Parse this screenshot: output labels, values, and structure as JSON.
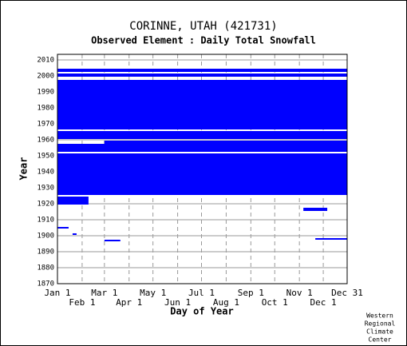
{
  "chart_data": {
    "type": "timeline",
    "title": "CORINNE, UTAH   (421731)",
    "subtitle": "Observed Element : Daily Total Snowfall",
    "xlabel": "Day of Year",
    "ylabel": "Year",
    "note": [
      "Western",
      "Regional",
      "Climate",
      "Center"
    ],
    "color": "#0000ff",
    "xlim": [
      1,
      365
    ],
    "xticks": [
      {
        "value": 1,
        "label": "Jan 1"
      },
      {
        "value": 32,
        "label": "Feb 1"
      },
      {
        "value": 60,
        "label": "Mar 1"
      },
      {
        "value": 91,
        "label": "Apr 1"
      },
      {
        "value": 121,
        "label": "May 1"
      },
      {
        "value": 152,
        "label": "Jun 1"
      },
      {
        "value": 182,
        "label": "Jul 1"
      },
      {
        "value": 213,
        "label": "Aug 1"
      },
      {
        "value": 244,
        "label": "Sep 1"
      },
      {
        "value": 274,
        "label": "Oct 1"
      },
      {
        "value": 305,
        "label": "Nov 1"
      },
      {
        "value": 335,
        "label": "Dec 1"
      },
      {
        "value": 365,
        "label": "Dec 31"
      }
    ],
    "ylim": [
      1870,
      2013.5
    ],
    "yticks": [
      1870,
      1880,
      1890,
      1900,
      1910,
      1920,
      1930,
      1940,
      1950,
      1960,
      1970,
      1980,
      1990,
      2000,
      2010
    ],
    "grid": true,
    "spans": [
      [
        1926,
        1951,
        1,
        365
      ],
      [
        1953,
        1957,
        1,
        365
      ],
      [
        1958,
        1959,
        60,
        365
      ],
      [
        1961,
        1965,
        1,
        365
      ],
      [
        1967,
        1985,
        1,
        365
      ],
      [
        1986,
        1997,
        1,
        365
      ],
      [
        2000,
        2001,
        1,
        365
      ],
      [
        2003,
        2004,
        1,
        365
      ],
      [
        1920,
        1924,
        1,
        40
      ],
      [
        1916,
        1917,
        310,
        340
      ],
      [
        1905,
        1905,
        1,
        15
      ],
      [
        1901,
        1901,
        20,
        25
      ],
      [
        1897,
        1897,
        60,
        80
      ],
      [
        1898,
        1898,
        325,
        365
      ]
    ]
  }
}
